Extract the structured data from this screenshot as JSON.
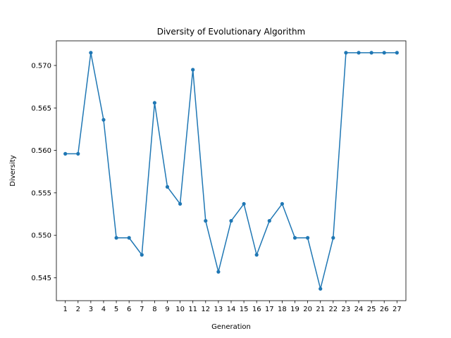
{
  "chart_data": {
    "type": "line",
    "title": "Diversity of Evolutionary Algorithm",
    "xlabel": "Generation",
    "ylabel": "Diversity",
    "x": [
      1,
      2,
      3,
      4,
      5,
      6,
      7,
      8,
      9,
      10,
      11,
      12,
      13,
      14,
      15,
      16,
      17,
      18,
      19,
      20,
      21,
      22,
      23,
      24,
      25,
      26,
      27
    ],
    "series": [
      {
        "values": [
          0.5596,
          0.5596,
          0.5715,
          0.5636,
          0.5497,
          0.5497,
          0.5477,
          0.5656,
          0.5557,
          0.5537,
          0.5695,
          0.5517,
          0.5457,
          0.5517,
          0.5537,
          0.5477,
          0.5517,
          0.5537,
          0.5497,
          0.5497,
          0.5437,
          0.5497,
          0.5715,
          0.5715,
          0.5715,
          0.5715,
          0.5715
        ],
        "color": "#1f77b4",
        "marker": "circle"
      }
    ],
    "xlim": [
      0.3,
      27.7
    ],
    "ylim": [
      0.5423,
      0.5729
    ],
    "yticks": [
      "0.545",
      "0.550",
      "0.555",
      "0.560",
      "0.565",
      "0.570"
    ],
    "xticks": [
      "1",
      "2",
      "3",
      "4",
      "5",
      "6",
      "7",
      "8",
      "9",
      "10",
      "11",
      "12",
      "13",
      "14",
      "15",
      "16",
      "17",
      "18",
      "19",
      "20",
      "21",
      "22",
      "23",
      "24",
      "25",
      "26",
      "27"
    ],
    "grid": false,
    "legend": "none"
  }
}
